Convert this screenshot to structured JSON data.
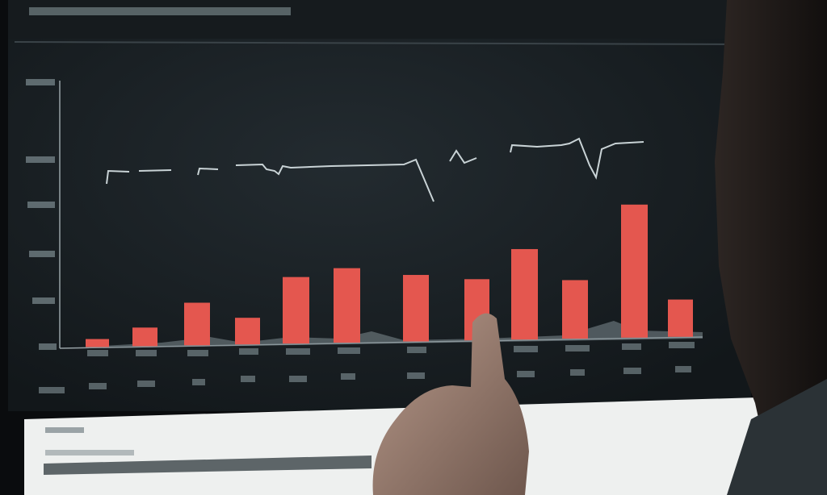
{
  "scene": {
    "description_type": "photo of a monitor showing a bar chart with a finger pointing at it",
    "text_legibility": "illegible"
  },
  "colors": {
    "screen_background": "#1b2125",
    "bar": "#e4574f",
    "line": "#c9d3d6",
    "panel": "#eef0ef",
    "progress_bar": "#5d6568"
  },
  "chart": {
    "bar_levels": [
      0.03,
      0.07,
      0.16,
      0.1,
      0.25,
      0.28,
      0.25,
      0.23,
      0.34,
      0.22,
      0.5,
      0.14
    ]
  },
  "progress": {
    "fill_fraction": 0.45
  }
}
